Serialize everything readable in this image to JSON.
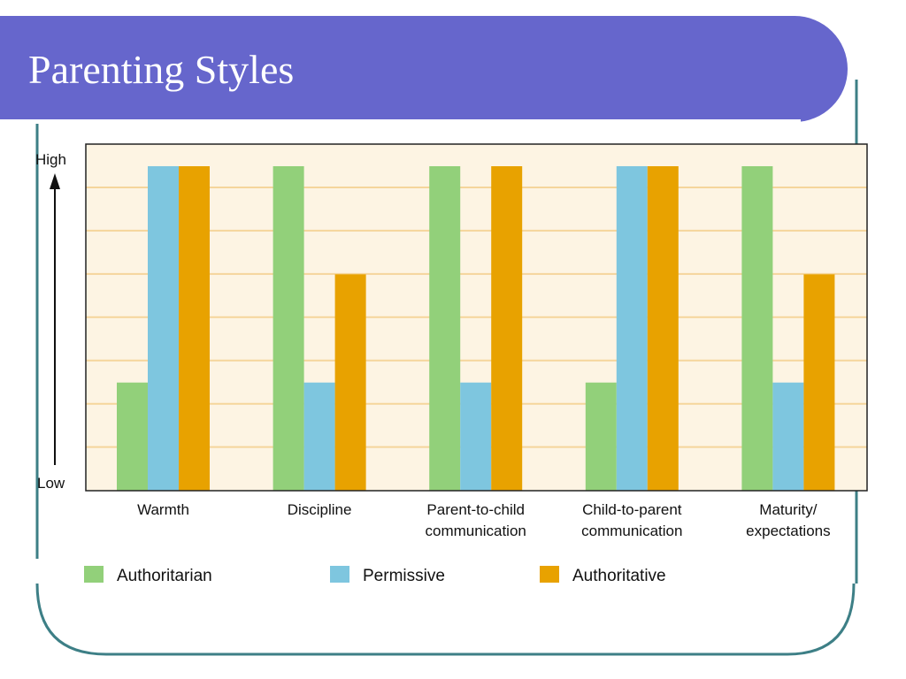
{
  "slide": {
    "title": "Parenting Styles"
  },
  "colors": {
    "title_bar": "#6666cc",
    "frame": "#3d7f86",
    "plot_bg": "#fdf4e3",
    "grid": "#f5d59b"
  },
  "chart_data": {
    "type": "bar",
    "title": "",
    "y_axis": {
      "high_label": "High",
      "low_label": "Low",
      "scale": "ordinal",
      "ylim": [
        0,
        3
      ]
    },
    "categories": [
      [
        "Warmth"
      ],
      [
        "Discipline"
      ],
      [
        "Parent-to-child",
        "communication"
      ],
      [
        "Child-to-parent",
        "communication"
      ],
      [
        "Maturity/",
        "expectations"
      ]
    ],
    "series": [
      {
        "name": "Authoritarian",
        "color": "#92d07a",
        "values": [
          1,
          3,
          3,
          1,
          3
        ]
      },
      {
        "name": "Permissive",
        "color": "#7ec6df",
        "values": [
          3,
          1,
          1,
          3,
          1
        ]
      },
      {
        "name": "Authoritative",
        "color": "#e8a200",
        "values": [
          3,
          2,
          3,
          3,
          2
        ]
      }
    ],
    "grid": true,
    "legend": "bottom"
  }
}
